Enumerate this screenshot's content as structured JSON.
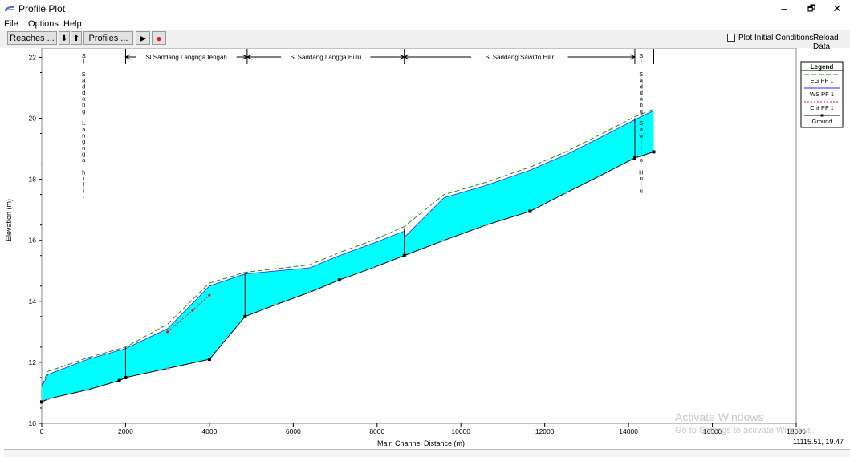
{
  "window": {
    "title": "Profile Plot",
    "minimize": "–",
    "restore": "🗗",
    "close": "✕"
  },
  "menu": [
    "File",
    "Options",
    "Help"
  ],
  "toolbar": {
    "reaches_label": "Reaches ...",
    "down_arrow": "⬇",
    "up_arrow": "⬆",
    "profiles_label": "Profiles ...",
    "play_icon": "▶",
    "record_icon": "●",
    "plot_initial_conditions_label": "Plot Initial Conditions",
    "plot_initial_conditions_checked": false,
    "reload_data_label": "Reload Data"
  },
  "chart_data": {
    "type": "line",
    "title": "",
    "xlabel": "Main Channel Distance (m)",
    "ylabel": "Elevation (m)",
    "xlim": [
      0,
      18000
    ],
    "ylim": [
      10,
      22.3
    ],
    "x_ticks": [
      0,
      2000,
      4000,
      6000,
      8000,
      10000,
      12000,
      14000,
      16000,
      18000
    ],
    "y_ticks": [
      10,
      12,
      14,
      16,
      18,
      20,
      22
    ],
    "grid": false,
    "legend": {
      "title": "Legend",
      "position": "top-right",
      "entries": [
        {
          "name": "EG  PF 1",
          "color": "#1a8c1a",
          "style": "dashed"
        },
        {
          "name": "WS  PF 1",
          "color": "#2a2aff",
          "style": "solid"
        },
        {
          "name": "Crit  PF 1",
          "color": "#e01b1b",
          "style": "dotted"
        },
        {
          "name": "Ground",
          "color": "#000000",
          "style": "solid-marker"
        }
      ]
    },
    "series": [
      {
        "name": "Ground",
        "x": [
          0,
          150,
          1100,
          1850,
          2000,
          3000,
          4000,
          4850,
          5600,
          6400,
          7100,
          7900,
          8650,
          9600,
          10600,
          11650,
          12500,
          13300,
          14150,
          14600
        ],
        "y": [
          10.7,
          10.8,
          11.1,
          11.4,
          11.5,
          11.8,
          12.1,
          13.5,
          13.9,
          14.3,
          14.7,
          15.1,
          15.5,
          16.0,
          16.5,
          16.95,
          17.55,
          18.1,
          18.7,
          18.9
        ]
      },
      {
        "name": "WS  PF 1",
        "x": [
          0,
          150,
          1100,
          2000,
          3000,
          4000,
          4850,
          6400,
          7100,
          7900,
          8650,
          8650,
          9600,
          10600,
          11650,
          12500,
          13300,
          14150,
          14600
        ],
        "y": [
          11.2,
          11.6,
          12.1,
          12.45,
          13.1,
          14.5,
          14.9,
          15.1,
          15.5,
          15.9,
          16.3,
          16.1,
          17.4,
          17.8,
          18.3,
          18.8,
          19.35,
          19.95,
          20.25
        ]
      },
      {
        "name": "EG  PF 1",
        "x": [
          0,
          150,
          1100,
          2000,
          3000,
          4000,
          4850,
          6400,
          7100,
          7900,
          8650,
          9600,
          10600,
          11650,
          12500,
          13300,
          14150,
          14600
        ],
        "y": [
          11.25,
          11.7,
          12.15,
          12.5,
          13.25,
          14.6,
          14.95,
          15.2,
          15.6,
          16.0,
          16.45,
          17.5,
          17.9,
          18.4,
          18.9,
          19.45,
          20.05,
          20.3
        ]
      },
      {
        "name": "Crit  PF 1",
        "x": [
          3000,
          3600,
          4000
        ],
        "y": [
          13.0,
          13.7,
          14.2
        ]
      }
    ],
    "reaches": [
      {
        "label": "Sl Saddang Langnga tengah",
        "x_start": 2000,
        "x_end": 4900
      },
      {
        "label": "Sl Saddang Langga Hulu",
        "x_start": 4900,
        "x_end": 8650
      },
      {
        "label": "Sl Saddang Sawitto Hilir",
        "x_start": 8650,
        "x_end": 14150
      }
    ],
    "vertical_labels": [
      {
        "text": "Sl Saddang Langnga hilir",
        "x": 1000
      },
      {
        "text": "Sl Saddang Sawitto Hulu",
        "x": 14300
      }
    ],
    "colors": {
      "fill": "#00ffff",
      "ground": "#000000",
      "ws": "#2a2aff",
      "eg": "#1a8c1a",
      "crit": "#e01b1b"
    }
  },
  "status": {
    "watermark_title": "Activate Windows",
    "watermark_sub": "Go to Settings to activate Windows.",
    "coordinates": "11115.51, 19.47"
  }
}
